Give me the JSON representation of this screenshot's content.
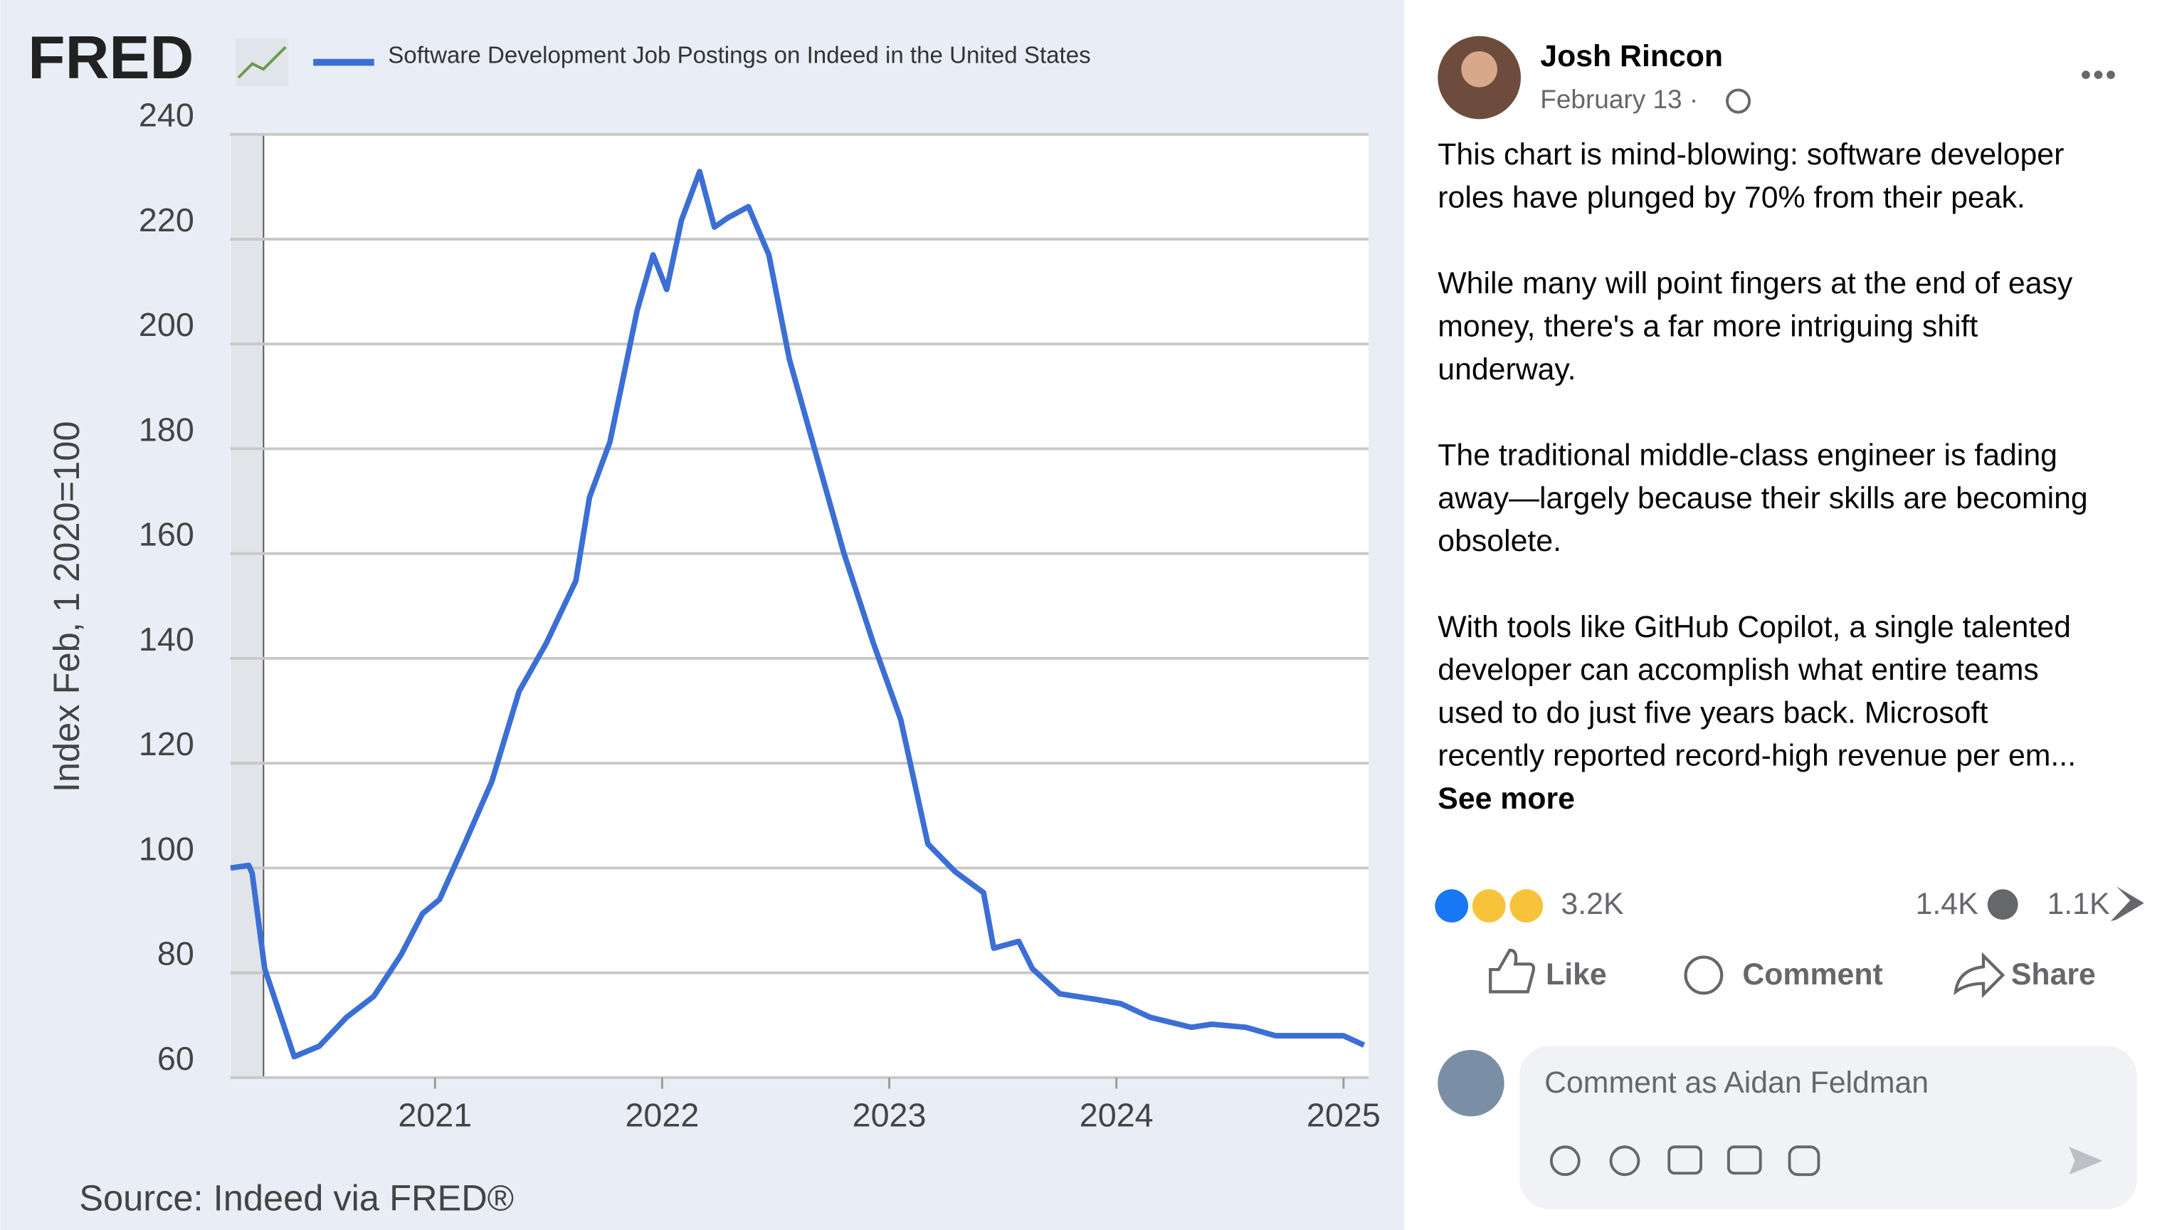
{
  "chart_data": {
    "type": "line",
    "logo": "FRED",
    "title": "Software Development Job Postings on Indeed in the United States",
    "ylabel": "Index Feb, 1 2020=100",
    "source": "Source: Indeed via FRED®",
    "x": [
      2020.1,
      2020.18,
      2020.195,
      2020.25,
      2020.38,
      2020.49,
      2020.61,
      2020.73,
      2020.85,
      2020.945,
      2021.02,
      2021.13,
      2021.25,
      2021.37,
      2021.49,
      2021.62,
      2021.68,
      2021.77,
      2021.89,
      2021.96,
      2022.02,
      2022.085,
      2022.165,
      2022.23,
      2022.29,
      2022.38,
      2022.47,
      2022.56,
      2022.68,
      2022.8,
      2022.93,
      2023.05,
      2023.17,
      2023.29,
      2023.415,
      2023.46,
      2023.57,
      2023.63,
      2023.75,
      2023.9,
      2024.02,
      2024.15,
      2024.33,
      2024.42,
      2024.57,
      2024.7,
      2024.85,
      2025.0,
      2025.09
    ],
    "series": [
      {
        "name": "Software Development Job Postings on Indeed in the United States",
        "color": "#3c6fd4",
        "values": [
          100,
          100.5,
          99,
          80.8,
          64,
          66,
          71.5,
          75.5,
          83.4,
          91.3,
          94,
          104.6,
          116.5,
          133.7,
          142.9,
          154.8,
          170.7,
          181.3,
          206.4,
          217,
          210.4,
          223.6,
          232.9,
          222.3,
          224.1,
          226.2,
          217,
          197.1,
          178.6,
          160.1,
          142.9,
          128.4,
          104.6,
          99.3,
          95.3,
          84.7,
          86,
          80.8,
          76,
          75,
          74.1,
          71.5,
          69.6,
          70.2,
          69.6,
          68,
          68,
          68,
          66.2
        ]
      }
    ],
    "recession": [
      2020.1,
      2020.245
    ],
    "xlim": [
      2020.098,
      2025.11
    ],
    "xticks": [
      2021,
      2022,
      2023,
      2024,
      2025
    ],
    "ylim": [
      60,
      240
    ],
    "yticks": [
      60,
      80,
      100,
      120,
      140,
      160,
      180,
      200,
      220,
      240
    ],
    "grid": true
  },
  "post": {
    "author": "Josh Rincon",
    "date": "February 13 ·",
    "paragraphs": [
      [
        "This chart is mind-blowing: software developer",
        "roles have plunged by 70% from their peak."
      ],
      [
        "While many will point fingers at the end of easy",
        "money, there's a far more intriguing shift",
        "underway."
      ],
      [
        "The traditional middle-class engineer is fading",
        "away—largely because their skills are becoming",
        "obsolete."
      ],
      [
        "With tools like GitHub Copilot, a single talented",
        "developer can accomplish what entire teams",
        "used to do just five years back. Microsoft",
        "recently reported record-high revenue per em..."
      ]
    ],
    "see_more": "See more",
    "reactions": "3.2K",
    "comments": "1.4K",
    "shares": "1.1K",
    "actions": [
      "Like",
      "Comment",
      "Share"
    ],
    "comment_placeholder": "Comment as Aidan Feldman"
  }
}
